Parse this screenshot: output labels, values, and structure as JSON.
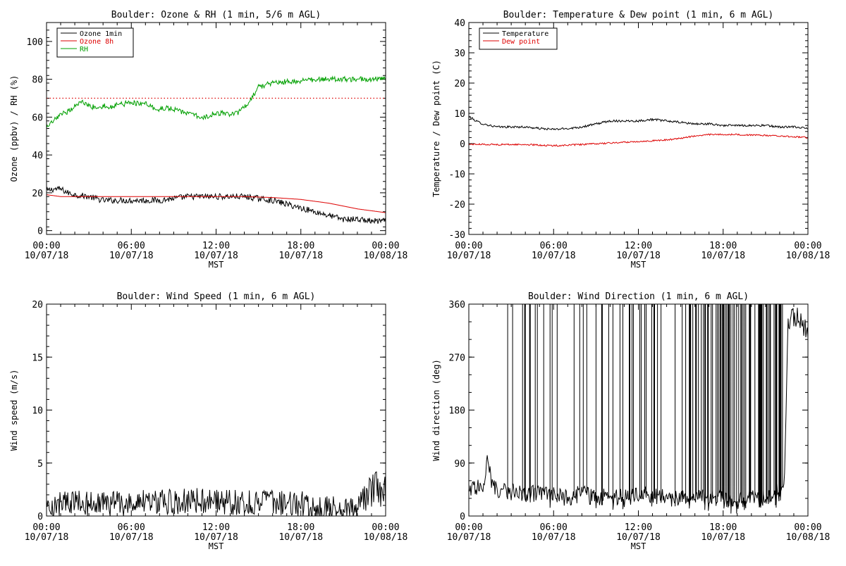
{
  "chart_data": [
    {
      "id": "ozone",
      "type": "line",
      "title": "Boulder: Ozone & RH (1 min, 5/6 m AGL)",
      "xlabel": "MST",
      "ylabel": "Ozone (ppbv) / RH (%)",
      "ylim": [
        -2,
        110
      ],
      "yticks": [
        0,
        20,
        40,
        60,
        80,
        100
      ],
      "xticks": [
        {
          "time": "00:00",
          "date": "10/07/18"
        },
        {
          "time": "06:00",
          "date": "10/07/18"
        },
        {
          "time": "12:00",
          "date": "10/07/18"
        },
        {
          "time": "18:00",
          "date": "10/07/18"
        },
        {
          "time": "00:00",
          "date": "10/08/18"
        }
      ],
      "xrange_hours": [
        0,
        24
      ],
      "legend": "top-left",
      "reference_line": {
        "y": 70,
        "color": "#dd0000",
        "style": "dotted"
      },
      "series": [
        {
          "name": "Ozone 1min",
          "color": "#000000",
          "x": [
            0,
            0.5,
            1,
            1.5,
            2,
            3,
            4,
            5,
            6,
            7,
            8,
            9,
            10,
            11,
            12,
            13,
            14,
            15,
            16,
            17,
            18,
            19,
            20,
            21,
            22,
            23,
            24
          ],
          "y": [
            21,
            22,
            22,
            20,
            19,
            18,
            16,
            16,
            16,
            16,
            16,
            17,
            18,
            18,
            18,
            18,
            18,
            17,
            16,
            14,
            12,
            10,
            8,
            6,
            6,
            5,
            5
          ]
        },
        {
          "name": "Ozone 8h",
          "color": "#dd0000",
          "x": [
            0,
            1,
            2,
            4,
            6,
            8,
            10,
            12,
            14,
            16,
            17,
            18,
            19,
            20,
            21,
            22,
            23,
            24
          ],
          "y": [
            19,
            18,
            18,
            18,
            18,
            18,
            18,
            18,
            18,
            17.5,
            17,
            16.5,
            15.5,
            14.5,
            13,
            11.5,
            10.5,
            9.5
          ]
        },
        {
          "name": "RH",
          "color": "#00a000",
          "x": [
            0,
            0.5,
            1,
            1.5,
            2,
            2.5,
            3,
            3.5,
            4,
            4.5,
            5,
            5.5,
            6,
            6.5,
            7,
            7.5,
            8,
            8.5,
            9,
            9.5,
            10,
            10.5,
            11,
            11.5,
            12,
            12.5,
            13,
            13.5,
            14,
            14.5,
            15,
            16,
            17,
            18,
            19,
            20,
            21,
            22,
            23,
            24
          ],
          "y": [
            54,
            58,
            61,
            63,
            66,
            68,
            66,
            65,
            66,
            65,
            67,
            67,
            68,
            67,
            67,
            65,
            64,
            65,
            64,
            63,
            62,
            61,
            59,
            61,
            62,
            62,
            61,
            62,
            65,
            70,
            76,
            78,
            79,
            79,
            80,
            80,
            80,
            80,
            80,
            80
          ]
        }
      ]
    },
    {
      "id": "temp",
      "type": "line",
      "title": "Boulder: Temperature & Dew point (1 min, 6 m AGL)",
      "xlabel": "MST",
      "ylabel": "Temperature / Dew point (C)",
      "ylim": [
        -30,
        40
      ],
      "yticks": [
        -30,
        -20,
        -10,
        0,
        10,
        20,
        30,
        40
      ],
      "xticks": [
        {
          "time": "00:00",
          "date": "10/07/18"
        },
        {
          "time": "06:00",
          "date": "10/07/18"
        },
        {
          "time": "12:00",
          "date": "10/07/18"
        },
        {
          "time": "18:00",
          "date": "10/07/18"
        },
        {
          "time": "00:00",
          "date": "10/08/18"
        }
      ],
      "xrange_hours": [
        0,
        24
      ],
      "legend": "top-left",
      "series": [
        {
          "name": "Temperature",
          "color": "#000000",
          "x": [
            0,
            0.5,
            1,
            2,
            3,
            4,
            5,
            6,
            7,
            8,
            9,
            10,
            11,
            12,
            13,
            14,
            15,
            16,
            17,
            18,
            19,
            20,
            21,
            22,
            23,
            24
          ],
          "y": [
            9,
            7.5,
            6.5,
            5.5,
            5.5,
            5.5,
            5,
            4.7,
            5,
            5.5,
            6.5,
            7.5,
            7.5,
            7.5,
            8,
            7.5,
            7,
            6.5,
            6.5,
            6,
            6,
            6,
            6,
            5.5,
            5.5,
            5
          ]
        },
        {
          "name": "Dew point",
          "color": "#dd0000",
          "x": [
            0,
            2,
            4,
            6,
            8,
            10,
            12,
            14,
            15,
            16,
            17,
            18,
            19,
            20,
            21,
            22,
            23,
            24
          ],
          "y": [
            -0.2,
            -0.3,
            -0.3,
            -0.7,
            -0.3,
            0.2,
            0.7,
            1.2,
            1.8,
            2.5,
            3,
            3,
            3,
            2.8,
            2.7,
            2.5,
            2.3,
            2
          ]
        }
      ]
    },
    {
      "id": "wspd",
      "type": "line",
      "title": "Boulder: Wind Speed (1 min, 6 m AGL)",
      "xlabel": "MST",
      "ylabel": "Wind speed (m/s)",
      "ylim": [
        0,
        20
      ],
      "yticks": [
        0,
        5,
        10,
        15,
        20
      ],
      "xticks": [
        {
          "time": "00:00",
          "date": "10/07/18"
        },
        {
          "time": "06:00",
          "date": "10/07/18"
        },
        {
          "time": "12:00",
          "date": "10/07/18"
        },
        {
          "time": "18:00",
          "date": "10/07/18"
        },
        {
          "time": "00:00",
          "date": "10/08/18"
        }
      ],
      "xrange_hours": [
        0,
        24
      ],
      "series": [
        {
          "color": "#000000",
          "x": [
            0,
            1,
            2,
            3,
            4,
            5,
            6,
            7,
            8,
            9,
            10,
            11,
            12,
            13,
            14,
            15,
            16,
            17,
            18,
            19,
            20,
            21,
            21.5,
            22,
            22.5,
            23,
            24
          ],
          "y": [
            0.8,
            1.0,
            1.1,
            0.9,
            0.8,
            0.9,
            1.0,
            1.1,
            1.1,
            1.1,
            1.2,
            1.2,
            1.1,
            1.1,
            1.0,
            1.1,
            1.0,
            0.9,
            0.9,
            0.8,
            0.7,
            0.5,
            0.3,
            0.8,
            1.5,
            2.0,
            1.8
          ]
        }
      ]
    },
    {
      "id": "wdir",
      "type": "line",
      "title": "Boulder: Wind Direction (1 min, 6 m AGL)",
      "xlabel": "MST",
      "ylabel": "Wind direction (deg)",
      "ylim": [
        0,
        360
      ],
      "yticks": [
        0,
        90,
        180,
        270,
        360
      ],
      "xticks": [
        {
          "time": "00:00",
          "date": "10/07/18"
        },
        {
          "time": "06:00",
          "date": "10/07/18"
        },
        {
          "time": "12:00",
          "date": "10/07/18"
        },
        {
          "time": "18:00",
          "date": "10/07/18"
        },
        {
          "time": "00:00",
          "date": "10/08/18"
        }
      ],
      "xrange_hours": [
        0,
        24
      ],
      "series": [
        {
          "color": "#000000",
          "x": [
            0,
            0.5,
            1,
            1.3,
            1.6,
            2,
            3,
            4,
            5,
            6,
            7,
            8,
            9,
            10,
            11,
            12,
            13,
            14,
            15,
            16,
            17,
            18,
            19,
            20,
            21,
            22.3,
            22.6,
            23,
            23.5,
            24
          ],
          "y": [
            40,
            50,
            55,
            90,
            60,
            45,
            40,
            35,
            40,
            35,
            30,
            40,
            30,
            35,
            30,
            35,
            35,
            30,
            30,
            30,
            30,
            30,
            25,
            30,
            30,
            40,
            330,
            340,
            330,
            320
          ]
        }
      ]
    }
  ]
}
